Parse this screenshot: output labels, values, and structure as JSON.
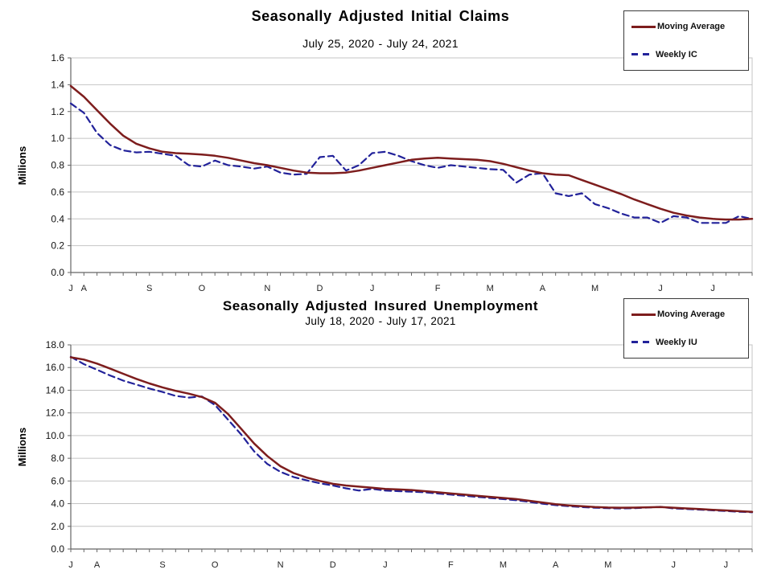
{
  "colors": {
    "moving_average": "#7D1D1D",
    "weekly_line": "#22229A",
    "grid": "#c4c4c4",
    "axis": "#666666",
    "text": "#111111",
    "background": "#ffffff"
  },
  "chart_data": [
    {
      "type": "line",
      "title": "Seasonally Adjusted Initial Claims",
      "subtitle": "July 25, 2020 - July 24, 2021",
      "ylabel": "Millions",
      "ylim": [
        0.0,
        1.6
      ],
      "ytick_labels": [
        "1.6",
        "1.4",
        "1.2",
        "1.0",
        "0.8",
        "0.6",
        "0.4",
        "0.2",
        "0.0"
      ],
      "grid": true,
      "legend_position": "top-right",
      "x_unit": "week",
      "weeks": 53,
      "month_tick_labels": [
        "J",
        "A",
        "S",
        "O",
        "N",
        "D",
        "J",
        "F",
        "M",
        "A",
        "M",
        "J",
        "J"
      ],
      "month_tick_weeks": [
        0,
        1,
        6,
        10,
        15,
        19,
        23,
        28,
        32,
        36,
        40,
        45,
        49
      ],
      "series": [
        {
          "name": "Moving Average",
          "style": "solid",
          "color_key": "moving_average",
          "values": [
            1.39,
            1.31,
            1.21,
            1.11,
            1.02,
            0.96,
            0.925,
            0.9,
            0.89,
            0.885,
            0.88,
            0.87,
            0.855,
            0.835,
            0.815,
            0.8,
            0.78,
            0.76,
            0.745,
            0.74,
            0.74,
            0.745,
            0.76,
            0.78,
            0.8,
            0.82,
            0.84,
            0.85,
            0.855,
            0.85,
            0.845,
            0.84,
            0.83,
            0.81,
            0.785,
            0.76,
            0.74,
            0.73,
            0.725,
            0.69,
            0.655,
            0.62,
            0.585,
            0.545,
            0.51,
            0.475,
            0.445,
            0.425,
            0.41,
            0.4,
            0.395,
            0.395,
            0.4
          ]
        },
        {
          "name": "Weekly IC",
          "style": "dashed",
          "color_key": "weekly_line",
          "values": [
            1.26,
            1.19,
            1.04,
            0.95,
            0.91,
            0.895,
            0.9,
            0.885,
            0.87,
            0.8,
            0.79,
            0.835,
            0.8,
            0.79,
            0.775,
            0.79,
            0.745,
            0.73,
            0.735,
            0.86,
            0.87,
            0.76,
            0.8,
            0.89,
            0.9,
            0.87,
            0.83,
            0.8,
            0.78,
            0.8,
            0.79,
            0.78,
            0.77,
            0.765,
            0.67,
            0.73,
            0.74,
            0.59,
            0.57,
            0.59,
            0.51,
            0.48,
            0.44,
            0.41,
            0.41,
            0.37,
            0.42,
            0.41,
            0.37,
            0.37,
            0.37,
            0.42,
            0.4
          ]
        }
      ]
    },
    {
      "type": "line",
      "title": "Seasonally Adjusted Insured Unemployment",
      "subtitle": "July 18, 2020 - July 17, 2021",
      "ylabel": "Millions",
      "ylim": [
        0.0,
        18.0
      ],
      "ytick_labels": [
        "18.0",
        "16.0",
        "14.0",
        "12.0",
        "10.0",
        "8.0",
        "6.0",
        "4.0",
        "2.0",
        "0.0"
      ],
      "grid": true,
      "legend_position": "top-right",
      "x_unit": "week",
      "weeks": 53,
      "month_tick_labels": [
        "J",
        "A",
        "S",
        "O",
        "N",
        "D",
        "J",
        "F",
        "M",
        "A",
        "M",
        "J",
        "J"
      ],
      "month_tick_weeks": [
        0,
        2,
        7,
        11,
        16,
        20,
        24,
        29,
        33,
        37,
        41,
        46,
        50
      ],
      "series": [
        {
          "name": "Moving Average",
          "style": "solid",
          "color_key": "moving_average",
          "values": [
            16.9,
            16.7,
            16.35,
            15.9,
            15.45,
            15.0,
            14.6,
            14.25,
            13.95,
            13.7,
            13.4,
            12.9,
            11.9,
            10.6,
            9.3,
            8.2,
            7.3,
            6.7,
            6.3,
            6.0,
            5.75,
            5.6,
            5.5,
            5.4,
            5.3,
            5.25,
            5.2,
            5.1,
            5.0,
            4.9,
            4.8,
            4.7,
            4.6,
            4.5,
            4.4,
            4.25,
            4.1,
            3.95,
            3.85,
            3.77,
            3.7,
            3.66,
            3.64,
            3.65,
            3.68,
            3.7,
            3.64,
            3.58,
            3.52,
            3.46,
            3.4,
            3.34,
            3.28
          ]
        },
        {
          "name": "Weekly IU",
          "style": "dashed",
          "color_key": "weekly_line",
          "values": [
            16.95,
            16.3,
            15.8,
            15.3,
            14.85,
            14.5,
            14.15,
            13.85,
            13.5,
            13.35,
            13.45,
            12.7,
            11.4,
            10.1,
            8.6,
            7.5,
            6.8,
            6.35,
            6.05,
            5.8,
            5.6,
            5.35,
            5.15,
            5.3,
            5.15,
            5.1,
            5.05,
            5.0,
            4.9,
            4.8,
            4.7,
            4.6,
            4.5,
            4.4,
            4.3,
            4.15,
            4.0,
            3.87,
            3.78,
            3.7,
            3.64,
            3.6,
            3.58,
            3.6,
            3.66,
            3.72,
            3.58,
            3.52,
            3.47,
            3.41,
            3.35,
            3.29,
            3.24
          ]
        }
      ]
    }
  ]
}
